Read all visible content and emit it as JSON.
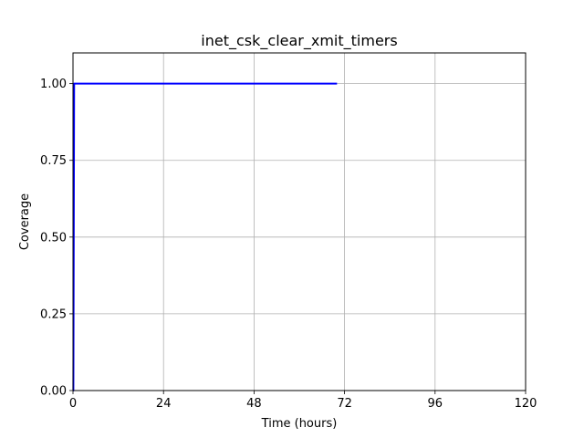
{
  "chart_data": {
    "type": "line",
    "title": "inet_csk_clear_xmit_timers",
    "xlabel": "Time (hours)",
    "ylabel": "Coverage",
    "xlim": [
      0,
      120
    ],
    "ylim": [
      0,
      1.1
    ],
    "x_ticks": [
      0,
      24,
      48,
      72,
      96,
      120
    ],
    "x_tick_labels": [
      "0",
      "24",
      "48",
      "72",
      "96",
      "120"
    ],
    "y_ticks": [
      0,
      0.25,
      0.5,
      0.75,
      1.0
    ],
    "y_tick_labels": [
      "0.00",
      "0.25",
      "0.50",
      "0.75",
      "1.00"
    ],
    "grid": true,
    "series": [
      {
        "color": "#0000ff",
        "x": [
          0,
          0.1,
          0.3,
          0.5,
          70
        ],
        "y": [
          0,
          0.0,
          1.0,
          1.0,
          1.0
        ]
      }
    ]
  }
}
